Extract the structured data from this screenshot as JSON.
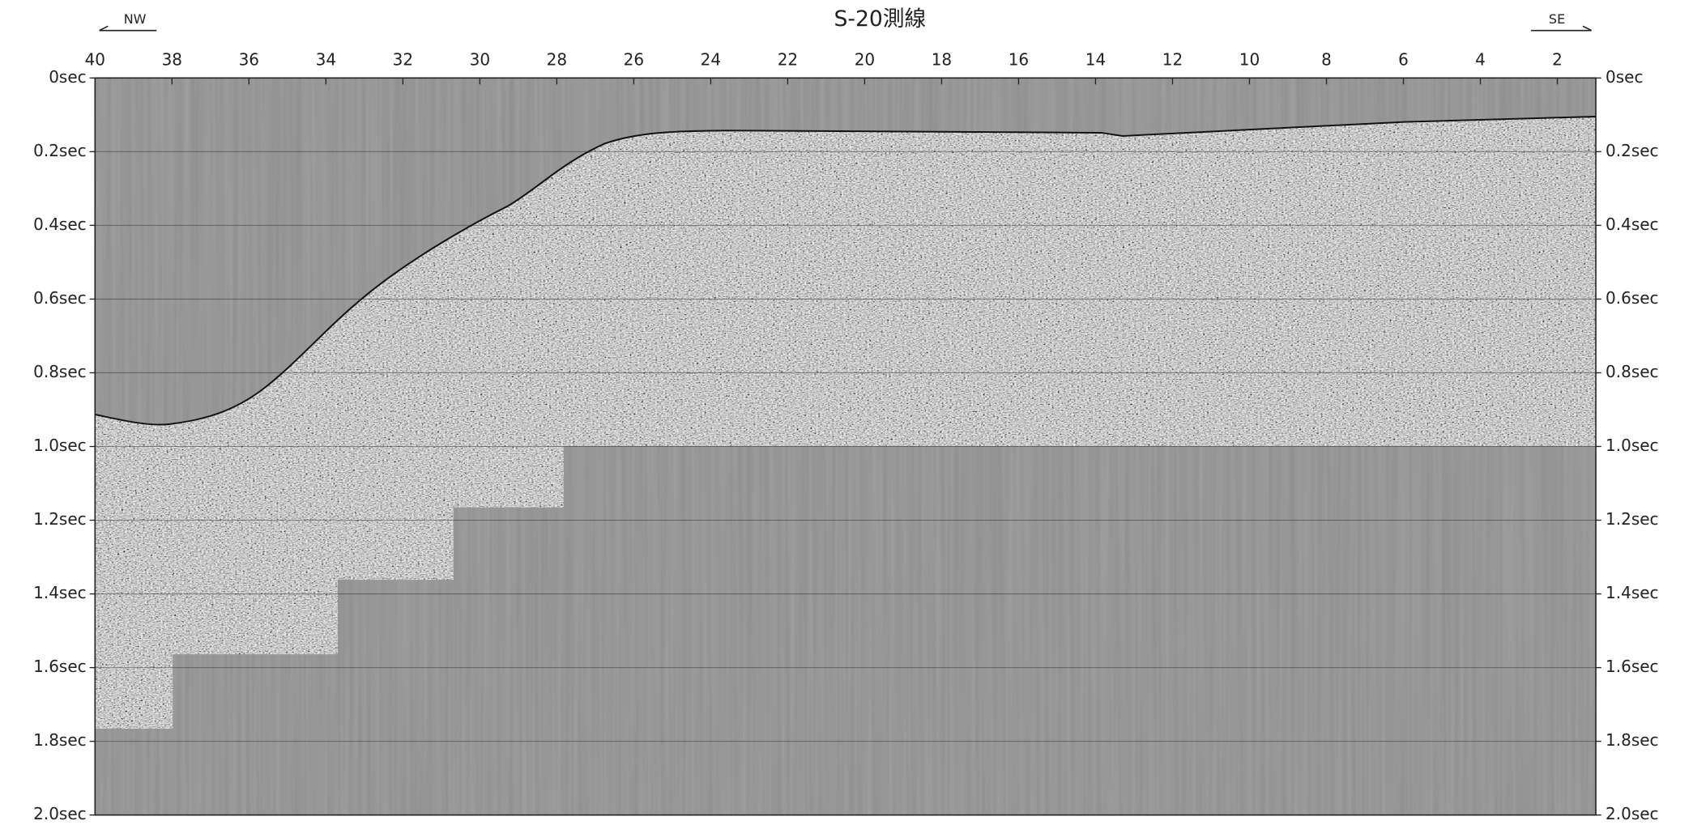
{
  "chart_data": {
    "type": "seismic",
    "title": "S-20測線",
    "direction_left": "NW",
    "direction_right": "SE",
    "xlim": [
      40,
      1
    ],
    "xticks": [
      40,
      38,
      36,
      34,
      32,
      30,
      28,
      26,
      24,
      22,
      20,
      18,
      16,
      14,
      12,
      10,
      8,
      6,
      4,
      2
    ],
    "ylim": [
      0,
      2.0
    ],
    "yticks": [
      {
        "value": 0,
        "label": "0sec"
      },
      {
        "value": 0.2,
        "label": "0.2sec"
      },
      {
        "value": 0.4,
        "label": "0.4sec"
      },
      {
        "value": 0.6,
        "label": "0.6sec"
      },
      {
        "value": 0.8,
        "label": "0.8sec"
      },
      {
        "value": 1.0,
        "label": "1.0sec"
      },
      {
        "value": 1.2,
        "label": "1.2sec"
      },
      {
        "value": 1.4,
        "label": "1.4sec"
      },
      {
        "value": 1.6,
        "label": "1.6sec"
      },
      {
        "value": 1.8,
        "label": "1.8sec"
      },
      {
        "value": 2.0,
        "label": "2.0sec"
      }
    ],
    "grid": true
  }
}
